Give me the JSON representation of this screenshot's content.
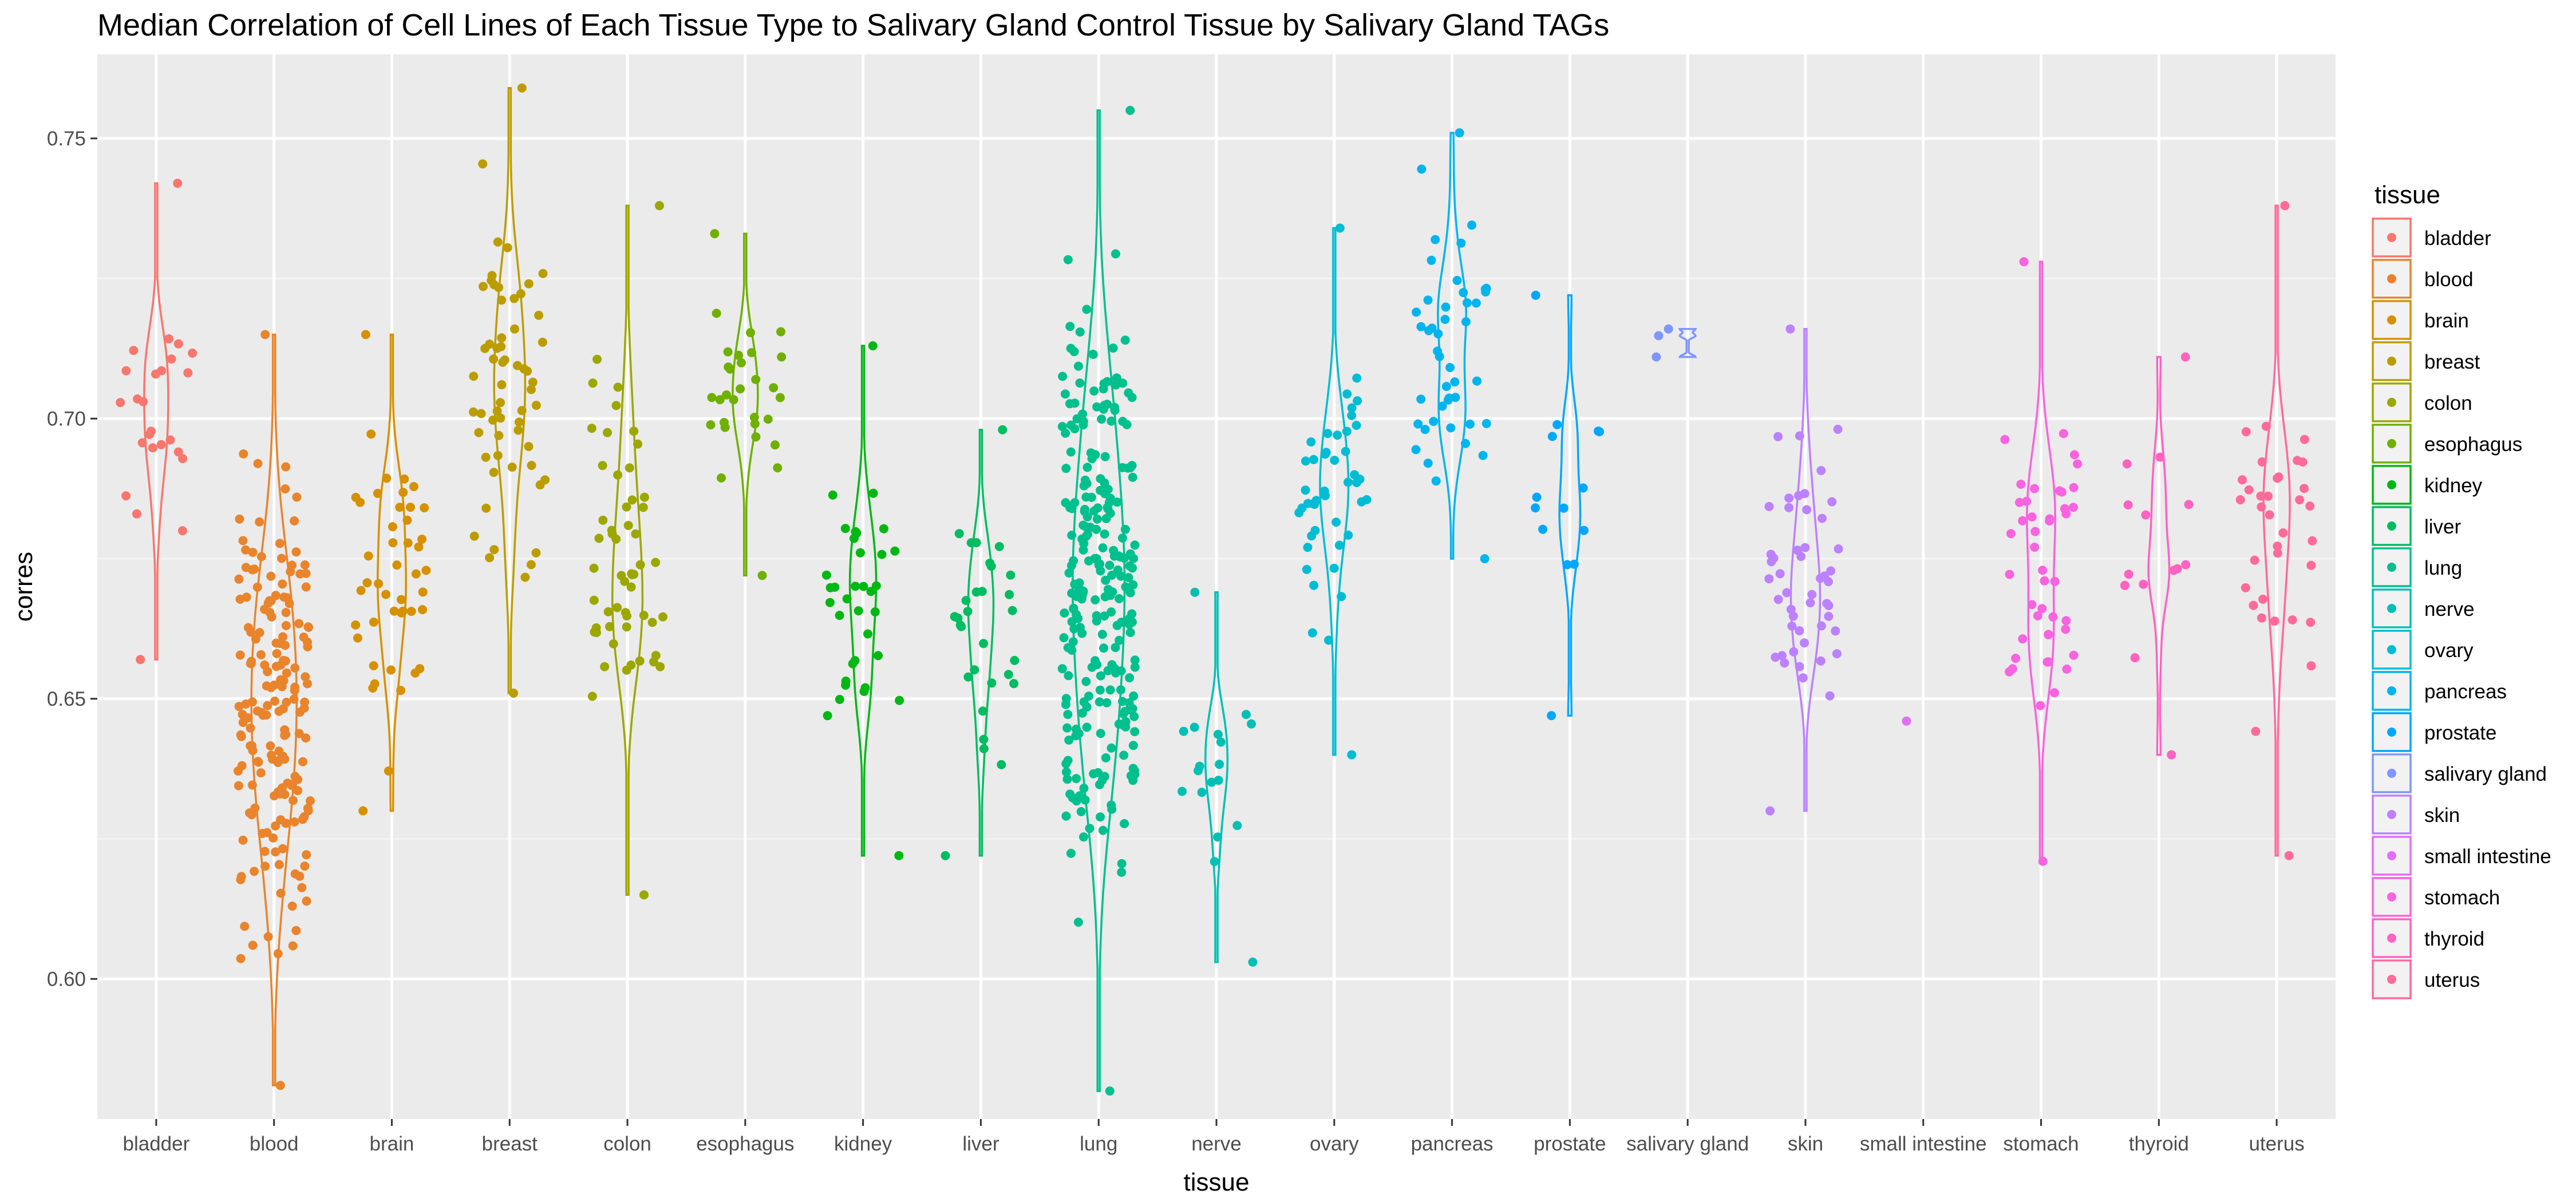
{
  "chart_data": {
    "type": "violin",
    "title": "Median Correlation of Cell Lines of Each Tissue Type to Salivary Gland Control Tissue by Salivary Gland TAGs",
    "xlabel": "tissue",
    "ylabel": "corres",
    "ylim": [
      0.575,
      0.765
    ],
    "yticks": [
      0.6,
      0.65,
      0.7,
      0.75
    ],
    "ytick_labels": [
      "0.60",
      "0.65",
      "0.70",
      "0.75"
    ],
    "grid": true,
    "legend_title": "tissue",
    "legend_position": "right",
    "categories": [
      "bladder",
      "blood",
      "brain",
      "breast",
      "colon",
      "esophagus",
      "kidney",
      "liver",
      "lung",
      "nerve",
      "ovary",
      "pancreas",
      "prostate",
      "salivary gland",
      "skin",
      "small intestine",
      "stomach",
      "thyroid",
      "uterus"
    ],
    "colors": [
      "#F8766D",
      "#E9842C",
      "#D69100",
      "#BC9D00",
      "#9CA700",
      "#6FB000",
      "#00B813",
      "#00BD61",
      "#00C08E",
      "#00C0B4",
      "#00BDD4",
      "#00B5EE",
      "#00A7FF",
      "#7F96FF",
      "#BC81FF",
      "#E26EF7",
      "#F863DF",
      "#FF62C0",
      "#FF6A9A"
    ],
    "ranges": [
      [
        0.657,
        0.742
      ],
      [
        0.581,
        0.715
      ],
      [
        0.63,
        0.715
      ],
      [
        0.651,
        0.759
      ],
      [
        0.615,
        0.738
      ],
      [
        0.672,
        0.733
      ],
      [
        0.622,
        0.713
      ],
      [
        0.622,
        0.698
      ],
      [
        0.58,
        0.755
      ],
      [
        0.603,
        0.669
      ],
      [
        0.64,
        0.734
      ],
      [
        0.675,
        0.751
      ],
      [
        0.647,
        0.722
      ],
      [
        0.711,
        0.716
      ],
      [
        0.63,
        0.716
      ],
      [
        0.646,
        0.646
      ],
      [
        0.621,
        0.728
      ],
      [
        0.64,
        0.711
      ],
      [
        0.622,
        0.738
      ]
    ],
    "counts": [
      25,
      180,
      45,
      60,
      55,
      30,
      35,
      30,
      260,
      18,
      45,
      45,
      14,
      3,
      50,
      1,
      45,
      14,
      35
    ]
  }
}
